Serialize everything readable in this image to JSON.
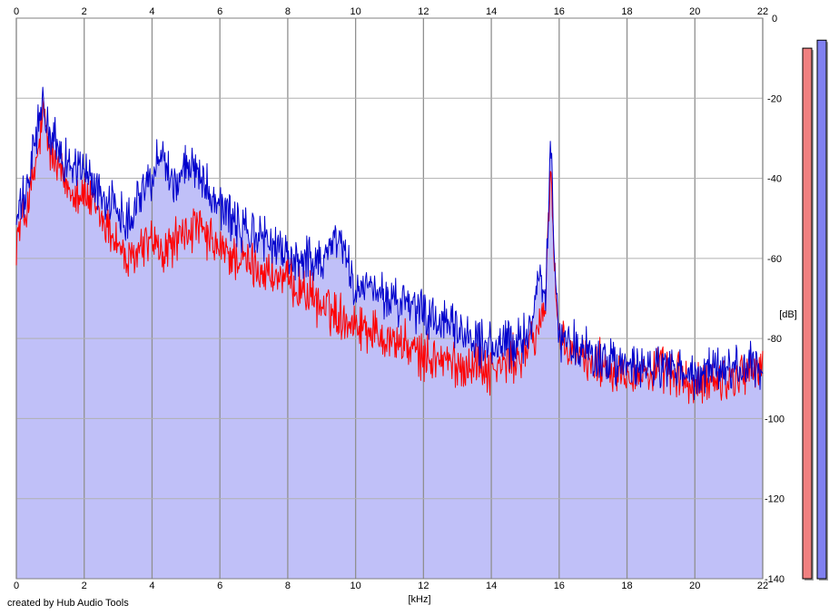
{
  "footer": {
    "credit": "created by Hub Audio Tools"
  },
  "chart_data": {
    "type": "area",
    "xlabel": "[kHz]",
    "ylabel": "[dB]",
    "xlim": [
      0,
      22
    ],
    "ylim": [
      -140,
      0
    ],
    "x_ticks": [
      0,
      2,
      4,
      6,
      8,
      10,
      12,
      14,
      16,
      18,
      20,
      22
    ],
    "y_ticks": [
      0,
      -20,
      -40,
      -60,
      -80,
      -100,
      -120,
      -140
    ],
    "grid": true,
    "background_fill_color": "#c0c0f8",
    "series": [
      {
        "color": "#ff0000",
        "x": [
          0,
          0.3,
          0.6,
          0.8,
          1,
          1.5,
          2,
          2.5,
          3,
          3.3,
          3.6,
          4,
          4.3,
          4.6,
          5,
          5.3,
          5.6,
          6,
          6.5,
          7,
          7.5,
          8,
          8.5,
          9,
          9.5,
          10,
          10.5,
          11,
          11.5,
          12,
          12.5,
          13,
          13.5,
          14,
          14.5,
          15,
          15.2,
          15.4,
          15.6,
          15.75,
          15.85,
          16,
          16.5,
          17,
          17.5,
          18,
          18.5,
          19,
          19.5,
          20,
          20.5,
          21,
          21.5,
          22
        ],
        "y": [
          -55,
          -48,
          -36,
          -24,
          -34,
          -42,
          -44,
          -50,
          -56,
          -62,
          -58,
          -55,
          -60,
          -56,
          -54,
          -52,
          -55,
          -58,
          -60,
          -62,
          -64,
          -66,
          -68,
          -72,
          -74,
          -76,
          -78,
          -80,
          -82,
          -85,
          -85,
          -87,
          -86,
          -88,
          -86,
          -84,
          -80,
          -78,
          -70,
          -35,
          -60,
          -82,
          -84,
          -86,
          -87,
          -88,
          -89,
          -88,
          -89,
          -93,
          -90,
          -90,
          -88,
          -88
        ]
      },
      {
        "color": "#0000cc",
        "x": [
          0,
          0.3,
          0.6,
          0.8,
          1,
          1.5,
          2,
          2.5,
          3,
          3.3,
          3.6,
          4,
          4.3,
          4.6,
          5,
          5.3,
          5.6,
          6,
          6.5,
          7,
          7.5,
          8,
          8.5,
          9,
          9.5,
          10,
          10.5,
          11,
          11.5,
          12,
          12.5,
          13,
          13.5,
          14,
          14.5,
          15,
          15.2,
          15.4,
          15.6,
          15.75,
          15.85,
          16,
          16.5,
          17,
          17.5,
          18,
          18.5,
          19,
          19.5,
          20,
          20.5,
          21,
          21.5,
          22
        ],
        "y": [
          -50,
          -44,
          -28,
          -22,
          -30,
          -36,
          -38,
          -44,
          -48,
          -50,
          -44,
          -40,
          -32,
          -42,
          -38,
          -36,
          -42,
          -46,
          -52,
          -54,
          -56,
          -60,
          -60,
          -60,
          -54,
          -68,
          -68,
          -70,
          -72,
          -74,
          -76,
          -78,
          -80,
          -82,
          -82,
          -80,
          -75,
          -62,
          -70,
          -31,
          -58,
          -80,
          -82,
          -84,
          -86,
          -87,
          -88,
          -87,
          -88,
          -90,
          -88,
          -88,
          -87,
          -88
        ]
      }
    ],
    "level_meters": [
      {
        "color": "#f08080",
        "level_db": -7.5
      },
      {
        "color": "#8080f0",
        "level_db": -5.5
      }
    ]
  }
}
